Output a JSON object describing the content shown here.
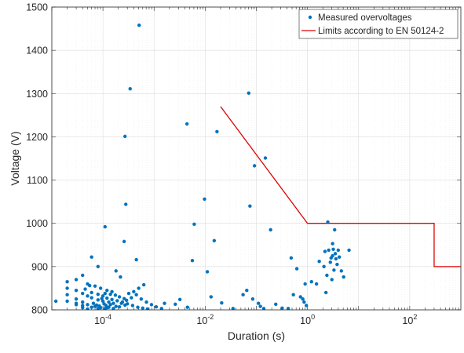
{
  "chart_data": {
    "type": "scatter",
    "title": "",
    "xlabel": "Duration (s)",
    "ylabel": "Voltage (V)",
    "xscale": "log",
    "xlim": [
      1e-05,
      1000
    ],
    "ylim": [
      800,
      1500
    ],
    "grid": true,
    "legend_position": "top-right",
    "x_ticks": [
      {
        "value": 0.0001,
        "base": "10",
        "exp": "-4"
      },
      {
        "value": 0.01,
        "base": "10",
        "exp": "-2"
      },
      {
        "value": 1,
        "base": "10",
        "exp": "0"
      },
      {
        "value": 100,
        "base": "10",
        "exp": "2"
      }
    ],
    "y_ticks": [
      {
        "value": 800,
        "label": "800"
      },
      {
        "value": 900,
        "label": "900"
      },
      {
        "value": 1000,
        "label": "1000"
      },
      {
        "value": 1100,
        "label": "1100"
      },
      {
        "value": 1200,
        "label": "1200"
      },
      {
        "value": 1300,
        "label": "1300"
      },
      {
        "value": 1400,
        "label": "1400"
      },
      {
        "value": 1500,
        "label": "1500"
      }
    ],
    "series": [
      {
        "name": "Measured overvoltages",
        "kind": "scatter",
        "color": "#0072BD",
        "points": [
          [
            0.00051,
            1458
          ],
          [
            0.00034,
            1311
          ],
          [
            0.071,
            1301
          ],
          [
            0.00027,
            1201
          ],
          [
            0.0044,
            1230
          ],
          [
            0.017,
            1212
          ],
          [
            0.15,
            1151
          ],
          [
            0.092,
            1133
          ],
          [
            0.0097,
            1056
          ],
          [
            0.00028,
            1044
          ],
          [
            0.075,
            1040
          ],
          [
            0.00011,
            992
          ],
          [
            0.0061,
            998
          ],
          [
            2.5,
            1003
          ],
          [
            0.19,
            985
          ],
          [
            0.00026,
            958
          ],
          [
            0.015,
            960
          ],
          [
            3.4,
            985
          ],
          [
            6e-05,
            922
          ],
          [
            0.00045,
            916
          ],
          [
            0.0056,
            914
          ],
          [
            0.48,
            920
          ],
          [
            8e-05,
            900
          ],
          [
            0.00018,
            890
          ],
          [
            0.00022,
            876
          ],
          [
            0.011,
            888
          ],
          [
            0.62,
            895
          ],
          [
            3.1,
            953
          ],
          [
            3.2,
            940
          ],
          [
            2.2,
            935
          ],
          [
            2.6,
            938
          ],
          [
            4.0,
            938
          ],
          [
            3.5,
            930
          ],
          [
            3.1,
            925
          ],
          [
            2.9,
            920
          ],
          [
            4.2,
            922
          ],
          [
            3.6,
            918
          ],
          [
            1.7,
            912
          ],
          [
            2.8,
            910
          ],
          [
            3.8,
            905
          ],
          [
            2.1,
            900
          ],
          [
            3.3,
            892
          ],
          [
            4.6,
            890
          ],
          [
            2.4,
            880
          ],
          [
            5.1,
            876
          ],
          [
            3.0,
            870
          ],
          [
            1.5,
            860
          ],
          [
            1.2,
            865
          ],
          [
            0.9,
            860
          ],
          [
            2.3,
            840
          ],
          [
            6.5,
            938
          ],
          [
            4e-05,
            880
          ],
          [
            3e-05,
            870
          ],
          [
            2e-05,
            865
          ],
          [
            5e-05,
            860
          ],
          [
            7e-05,
            855
          ],
          [
            9e-05,
            850
          ],
          [
            0.00012,
            845
          ],
          [
            0.00015,
            842
          ],
          [
            2e-05,
            850
          ],
          [
            3e-05,
            845
          ],
          [
            4e-05,
            838
          ],
          [
            5e-05,
            832
          ],
          [
            6e-05,
            828
          ],
          [
            8e-05,
            823
          ],
          [
            0.0001,
            820
          ],
          [
            0.00013,
            818
          ],
          [
            0.00016,
            815
          ],
          [
            2e-05,
            835
          ],
          [
            3e-05,
            825
          ],
          [
            4e-05,
            818
          ],
          [
            5e-05,
            812
          ],
          [
            7e-05,
            808
          ],
          [
            9e-05,
            805
          ],
          [
            0.00011,
            803
          ],
          [
            0.00014,
            812
          ],
          [
            0.00018,
            808
          ],
          [
            0.00023,
            815
          ],
          [
            0.00029,
            822
          ],
          [
            0.00036,
            828
          ],
          [
            0.00045,
            835
          ],
          [
            0.00056,
            825
          ],
          [
            0.00071,
            818
          ],
          [
            0.00089,
            812
          ],
          [
            0.0011,
            807
          ],
          [
            0.0014,
            803
          ],
          [
            2e-05,
            820
          ],
          [
            3e-05,
            812
          ],
          [
            4e-05,
            805
          ],
          [
            5e-05,
            802
          ],
          [
            6e-05,
            840
          ],
          [
            8e-05,
            836
          ],
          [
            0.0001,
            832
          ],
          [
            0.00012,
            827
          ],
          [
            0.00015,
            824
          ],
          [
            0.00019,
            821
          ],
          [
            0.00024,
            818
          ],
          [
            0.0003,
            814
          ],
          [
            0.00038,
            810
          ],
          [
            0.00048,
            806
          ],
          [
            0.0006,
            804
          ],
          [
            0.00075,
            802
          ],
          [
            9.5e-05,
            826
          ],
          [
            0.000105,
            814
          ],
          [
            0.000115,
            810
          ],
          [
            0.00013,
            806
          ],
          [
            6.5e-05,
            815
          ],
          [
            7.5e-05,
            811
          ],
          [
            8.5e-05,
            809
          ],
          [
            0.000175,
            834
          ],
          [
            0.00021,
            830
          ],
          [
            0.00026,
            826
          ],
          [
            0.00032,
            838
          ],
          [
            0.0004,
            842
          ],
          [
            0.0005,
            850
          ],
          [
            0.00063,
            858
          ],
          [
            1.2e-05,
            820
          ],
          [
            0.0016,
            815
          ],
          [
            0.0026,
            813
          ],
          [
            0.013,
            830
          ],
          [
            0.021,
            816
          ],
          [
            0.035,
            803
          ],
          [
            0.055,
            835
          ],
          [
            0.065,
            845
          ],
          [
            0.085,
            825
          ],
          [
            0.11,
            815
          ],
          [
            0.12,
            808
          ],
          [
            0.14,
            803
          ],
          [
            0.24,
            813
          ],
          [
            0.32,
            804
          ],
          [
            0.42,
            803
          ],
          [
            0.53,
            835
          ],
          [
            0.73,
            830
          ],
          [
            0.81,
            825
          ],
          [
            0.86,
            818
          ],
          [
            0.95,
            810
          ],
          [
            0.0032,
            824
          ],
          [
            0.0045,
            806
          ],
          [
            3e-05,
            815
          ],
          [
            4e-05,
            810
          ],
          [
            6e-05,
            806
          ],
          [
            8e-05,
            803
          ],
          [
            0.00012,
            805
          ],
          [
            0.00016,
            803
          ],
          [
            0.00021,
            807
          ],
          [
            0.00027,
            811
          ],
          [
            0.00011,
            838
          ],
          [
            0.00014,
            836
          ],
          [
            4.5e-05,
            848
          ],
          [
            5.5e-05,
            856
          ]
        ]
      },
      {
        "name": "Limits according to EN 50124-2",
        "kind": "line",
        "color": "#E00000",
        "points": [
          [
            0.02,
            1270
          ],
          [
            1,
            1000
          ],
          [
            300,
            1000
          ],
          [
            300,
            900
          ],
          [
            1000,
            900
          ]
        ]
      }
    ]
  }
}
